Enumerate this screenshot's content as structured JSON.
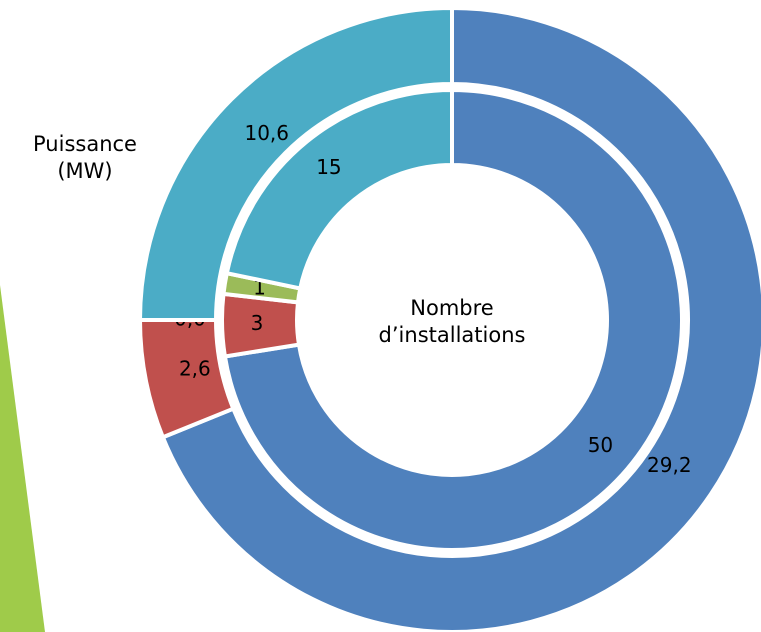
{
  "chart_data": {
    "type": "donut",
    "series": [
      {
        "name": "Puissance (MW)",
        "ring": "outer",
        "values": [
          29.2,
          2.6,
          0.0,
          10.6
        ],
        "value_labels": [
          "29,2",
          "2,6",
          "0,0",
          "10,6"
        ],
        "colors": [
          "#4f81bd",
          "#c0504d",
          "#9bbb59",
          "#4bacc6"
        ]
      },
      {
        "name": "Nombre d’installations",
        "ring": "inner",
        "values": [
          50,
          3,
          1,
          15
        ],
        "colors": [
          "#4f81bd",
          "#c0504d",
          "#9bbb59",
          "#4bacc6"
        ]
      }
    ]
  }
}
